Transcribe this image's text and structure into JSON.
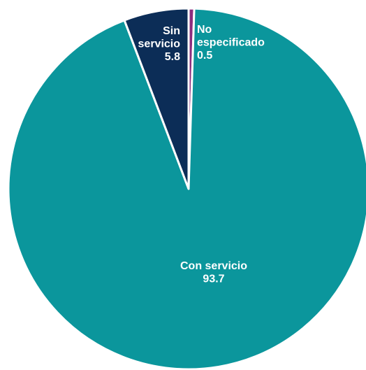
{
  "chart_data": {
    "type": "pie",
    "title": "",
    "start_angle_deg": 0,
    "direction": "clockwise",
    "slices": [
      {
        "label_lines": [
          "No",
          "especificado"
        ],
        "value": 0.5,
        "value_text": "0.5",
        "color": "#8B2C7E"
      },
      {
        "label_lines": [
          "Con servicio"
        ],
        "value": 93.7,
        "value_text": "93.7",
        "color": "#0B969C"
      },
      {
        "label_lines": [
          "Sin",
          "servicio"
        ],
        "value": 5.8,
        "value_text": "5.8",
        "color": "#0C2D57"
      }
    ],
    "slice_border_color": "#ffffff",
    "label_color": "#ffffff"
  }
}
